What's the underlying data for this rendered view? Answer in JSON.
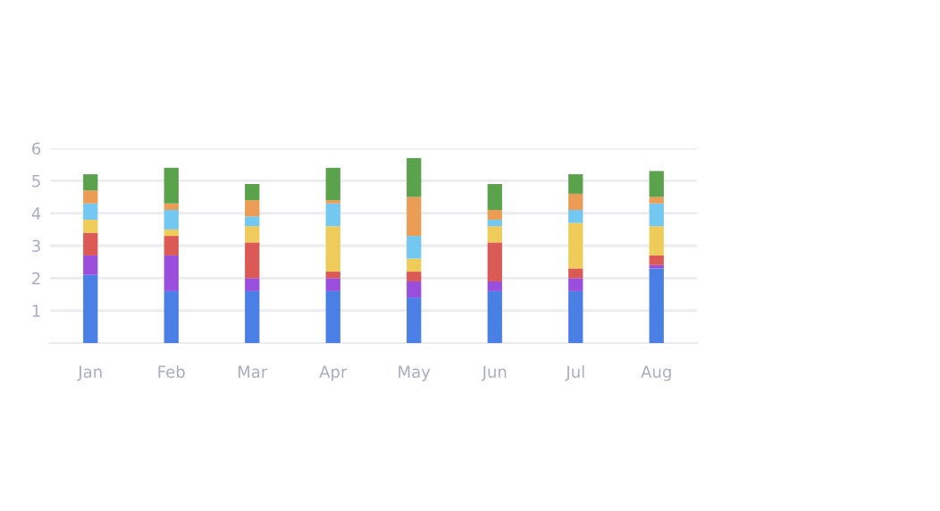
{
  "chart_data": {
    "type": "bar",
    "stacked": true,
    "categories": [
      "Jan",
      "Feb",
      "Mar",
      "Apr",
      "May",
      "Jun",
      "Jul",
      "Aug"
    ],
    "series": [
      {
        "color": "#4a7fe6",
        "values": [
          2.1,
          1.6,
          1.6,
          1.6,
          1.4,
          1.6,
          1.6,
          2.3
        ]
      },
      {
        "color": "#9a4fdc",
        "values": [
          0.6,
          1.1,
          0.4,
          0.4,
          0.5,
          0.3,
          0.4,
          0.1
        ]
      },
      {
        "color": "#dc5a55",
        "values": [
          0.7,
          0.6,
          1.1,
          0.2,
          0.3,
          1.2,
          0.3,
          0.3
        ]
      },
      {
        "color": "#efcb5a",
        "values": [
          0.4,
          0.2,
          0.5,
          1.4,
          0.4,
          0.5,
          1.4,
          0.9
        ]
      },
      {
        "color": "#72c8f0",
        "values": [
          0.5,
          0.6,
          0.3,
          0.7,
          0.7,
          0.2,
          0.4,
          0.7
        ]
      },
      {
        "color": "#eb9d55",
        "values": [
          0.4,
          0.2,
          0.5,
          0.1,
          1.2,
          0.3,
          0.5,
          0.2
        ]
      },
      {
        "color": "#5ba24c",
        "values": [
          0.5,
          1.1,
          0.5,
          1.0,
          1.2,
          0.8,
          0.6,
          0.8
        ]
      }
    ],
    "ylim": [
      0,
      6
    ],
    "yticks": [
      1,
      2,
      3,
      4,
      5,
      6
    ],
    "grid": "y"
  }
}
